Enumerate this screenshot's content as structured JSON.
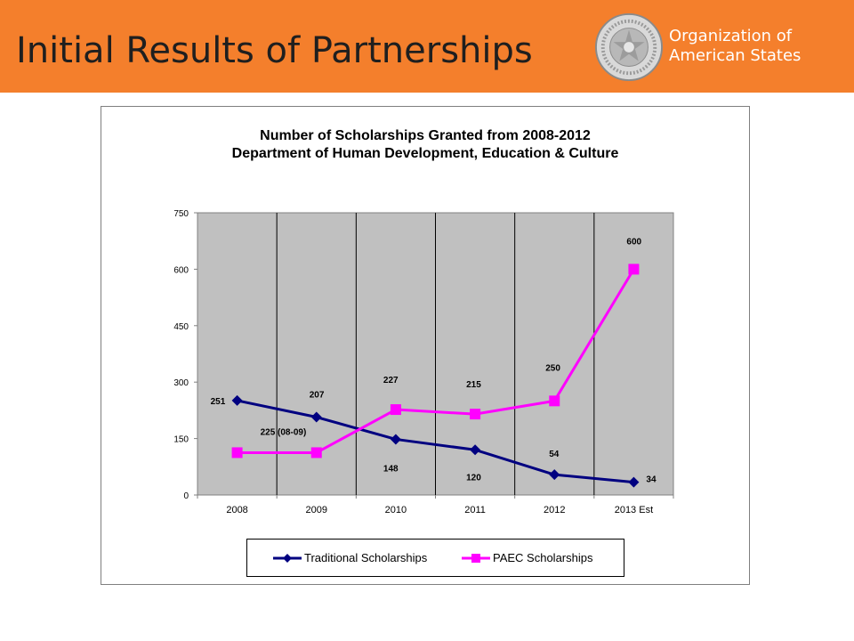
{
  "slide": {
    "title": "Initial Results of Partnerships",
    "org_line1": "Organization of",
    "org_line2": "American States",
    "banner_color": "#f47f2c",
    "logo_icon": "oas-seal-logo"
  },
  "chart_data": {
    "type": "line",
    "title": "Number of Scholarships Granted from 2008-2012",
    "subtitle": "Department of Human Development, Education & Culture",
    "xlabel": "",
    "ylabel": "",
    "categories": [
      "2008",
      "2009",
      "2010",
      "2011",
      "2012",
      "2013 Est"
    ],
    "ylim": [
      0,
      750
    ],
    "yticks": [
      0,
      150,
      300,
      450,
      600,
      750
    ],
    "grid": "vertical lines between categories",
    "plot_background": "#c0c0c0",
    "legend_position": "bottom",
    "series": [
      {
        "name": "Traditional Scholarships",
        "color": "#000080",
        "marker": "diamond",
        "values": [
          251,
          207,
          148,
          120,
          54,
          34
        ],
        "labels": [
          "251",
          "207",
          "148",
          "120",
          "54",
          "34"
        ]
      },
      {
        "name": "PAEC Scholarships",
        "color": "#ff00ff",
        "marker": "square",
        "values": [
          112.5,
          112.5,
          227,
          215,
          250,
          600
        ],
        "labels": [
          "225 (08-09)",
          "",
          "227",
          "215",
          "250",
          "600"
        ]
      }
    ]
  }
}
